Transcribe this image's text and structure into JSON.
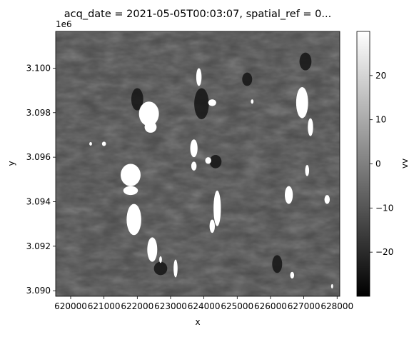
{
  "chart_data": {
    "type": "heatmap",
    "title": "acq_date = 2021-05-05T00:03:07, spatial_ref = 0...",
    "xlabel": "x",
    "ylabel": "y",
    "colorbar_label": "vv",
    "y_offset_text": "1e6",
    "x_ticks": [
      620000,
      621000,
      622000,
      623000,
      624000,
      625000,
      626000,
      627000,
      628000
    ],
    "x_tick_labels": [
      "620000",
      "621000",
      "622000",
      "623000",
      "624000",
      "625000",
      "626000",
      "627000",
      "628000"
    ],
    "y_ticks": [
      3.09,
      3.092,
      3.094,
      3.096,
      3.098,
      3.1
    ],
    "y_tick_labels": [
      "3.090",
      "3.092",
      "3.094",
      "3.096",
      "3.098",
      "3.100"
    ],
    "colorbar_ticks": [
      -20,
      -10,
      0,
      10,
      20
    ],
    "colorbar_tick_labels": [
      "−20",
      "−10",
      "0",
      "10",
      "20"
    ],
    "xlim": [
      619550,
      628080
    ],
    "ylim": [
      3.08975,
      3.10165
    ],
    "clim": [
      -30,
      30
    ],
    "colormap": "gray",
    "background_value": -10,
    "high_value_regions": [
      {
        "x": 622350,
        "y": 3.09795,
        "rx": 300,
        "ry": 0.00055
      },
      {
        "x": 622400,
        "y": 3.09735,
        "rx": 180,
        "ry": 0.00025
      },
      {
        "x": 623850,
        "y": 3.0996,
        "rx": 80,
        "ry": 0.0004
      },
      {
        "x": 624250,
        "y": 3.09845,
        "rx": 120,
        "ry": 0.00015
      },
      {
        "x": 623700,
        "y": 3.0964,
        "rx": 110,
        "ry": 0.0004
      },
      {
        "x": 623700,
        "y": 3.0956,
        "rx": 80,
        "ry": 0.0002
      },
      {
        "x": 624130,
        "y": 3.09585,
        "rx": 90,
        "ry": 0.00015
      },
      {
        "x": 621800,
        "y": 3.0952,
        "rx": 300,
        "ry": 0.0005
      },
      {
        "x": 621800,
        "y": 3.0945,
        "rx": 220,
        "ry": 0.0002
      },
      {
        "x": 621900,
        "y": 3.0932,
        "rx": 220,
        "ry": 0.0007
      },
      {
        "x": 622450,
        "y": 3.09185,
        "rx": 150,
        "ry": 0.00055
      },
      {
        "x": 624400,
        "y": 3.0937,
        "rx": 110,
        "ry": 0.0008
      },
      {
        "x": 624250,
        "y": 3.0929,
        "rx": 80,
        "ry": 0.0003
      },
      {
        "x": 623150,
        "y": 3.091,
        "rx": 60,
        "ry": 0.0004
      },
      {
        "x": 626950,
        "y": 3.09845,
        "rx": 180,
        "ry": 0.0007
      },
      {
        "x": 627200,
        "y": 3.09735,
        "rx": 80,
        "ry": 0.0004
      },
      {
        "x": 626550,
        "y": 3.0943,
        "rx": 120,
        "ry": 0.0004
      },
      {
        "x": 627100,
        "y": 3.0954,
        "rx": 60,
        "ry": 0.00025
      },
      {
        "x": 627700,
        "y": 3.0941,
        "rx": 80,
        "ry": 0.0002
      },
      {
        "x": 626650,
        "y": 3.0907,
        "rx": 60,
        "ry": 0.00015
      },
      {
        "x": 621000,
        "y": 3.0966,
        "rx": 60,
        "ry": 0.0001
      },
      {
        "x": 620600,
        "y": 3.0966,
        "rx": 40,
        "ry": 8e-05
      },
      {
        "x": 622700,
        "y": 3.0914,
        "rx": 40,
        "ry": 0.00015
      },
      {
        "x": 625450,
        "y": 3.0985,
        "rx": 40,
        "ry": 0.0001
      },
      {
        "x": 627850,
        "y": 3.0902,
        "rx": 30,
        "ry": 0.0001
      }
    ],
    "low_value_regions": [
      {
        "x": 623930,
        "y": 3.0984,
        "rx": 220,
        "ry": 0.0007
      },
      {
        "x": 627050,
        "y": 3.1003,
        "rx": 180,
        "ry": 0.0004
      },
      {
        "x": 622000,
        "y": 3.0986,
        "rx": 180,
        "ry": 0.0005
      },
      {
        "x": 624350,
        "y": 3.0958,
        "rx": 180,
        "ry": 0.0003
      },
      {
        "x": 625300,
        "y": 3.0995,
        "rx": 150,
        "ry": 0.0003
      },
      {
        "x": 622700,
        "y": 3.091,
        "rx": 200,
        "ry": 0.0003
      },
      {
        "x": 626200,
        "y": 3.0912,
        "rx": 150,
        "ry": 0.0004
      }
    ]
  }
}
